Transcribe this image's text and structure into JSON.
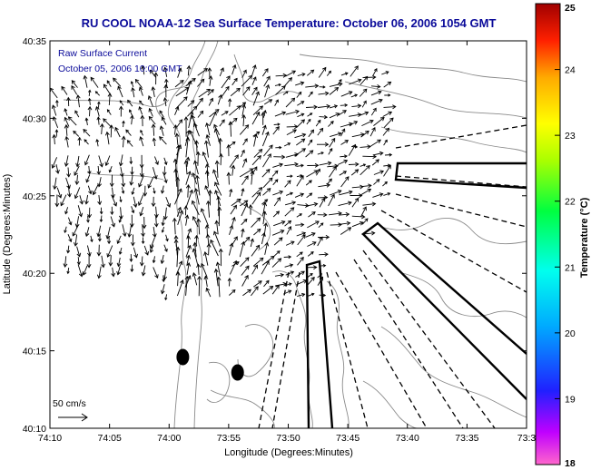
{
  "chart_data": {
    "type": "vector-field",
    "title": "RU COOL  NOAA-12  Sea Surface Temperature:  October 06, 2006 1054 GMT",
    "annotations": [
      "Raw Surface Current",
      "October 05, 2006 10:00 GMT"
    ],
    "xlabel": "Longitude (Degrees:Minutes)",
    "ylabel": "Latitude (Degrees:Minutes)",
    "x_ticks": [
      "74:10",
      "74:05",
      "74:00",
      "73:55",
      "73:50",
      "73:45",
      "73:40",
      "73:35",
      "73:3"
    ],
    "x_tick_values": [
      -74.1667,
      -74.0833,
      -74.0,
      -73.9167,
      -73.8333,
      -73.75,
      -73.6667,
      -73.5833,
      -73.5
    ],
    "y_ticks": [
      "40:35",
      "40:30",
      "40:25",
      "40:20",
      "40:15",
      "40:10"
    ],
    "y_tick_values": [
      40.5833,
      40.5,
      40.4167,
      40.3333,
      40.25,
      40.1667
    ],
    "xlim": [
      -74.1667,
      -73.5
    ],
    "ylim": [
      40.1667,
      40.5833
    ],
    "scale_label": "50 cm/s",
    "colorbar": {
      "label": "Temperature (°C)",
      "min": 18,
      "max": 25,
      "ticks": [
        "25",
        "24",
        "23",
        "22",
        "21",
        "20",
        "19",
        "18"
      ],
      "colors": [
        "#8b0000",
        "#ff0000",
        "#ff8c00",
        "#ffff00",
        "#00ff00",
        "#00ffff",
        "#0000ff",
        "#ff00ff"
      ]
    },
    "markers": [
      {
        "lon": -73.9808,
        "lat": 40.2433
      },
      {
        "lon": -73.9042,
        "lat": 40.2267
      }
    ],
    "grid": false
  }
}
